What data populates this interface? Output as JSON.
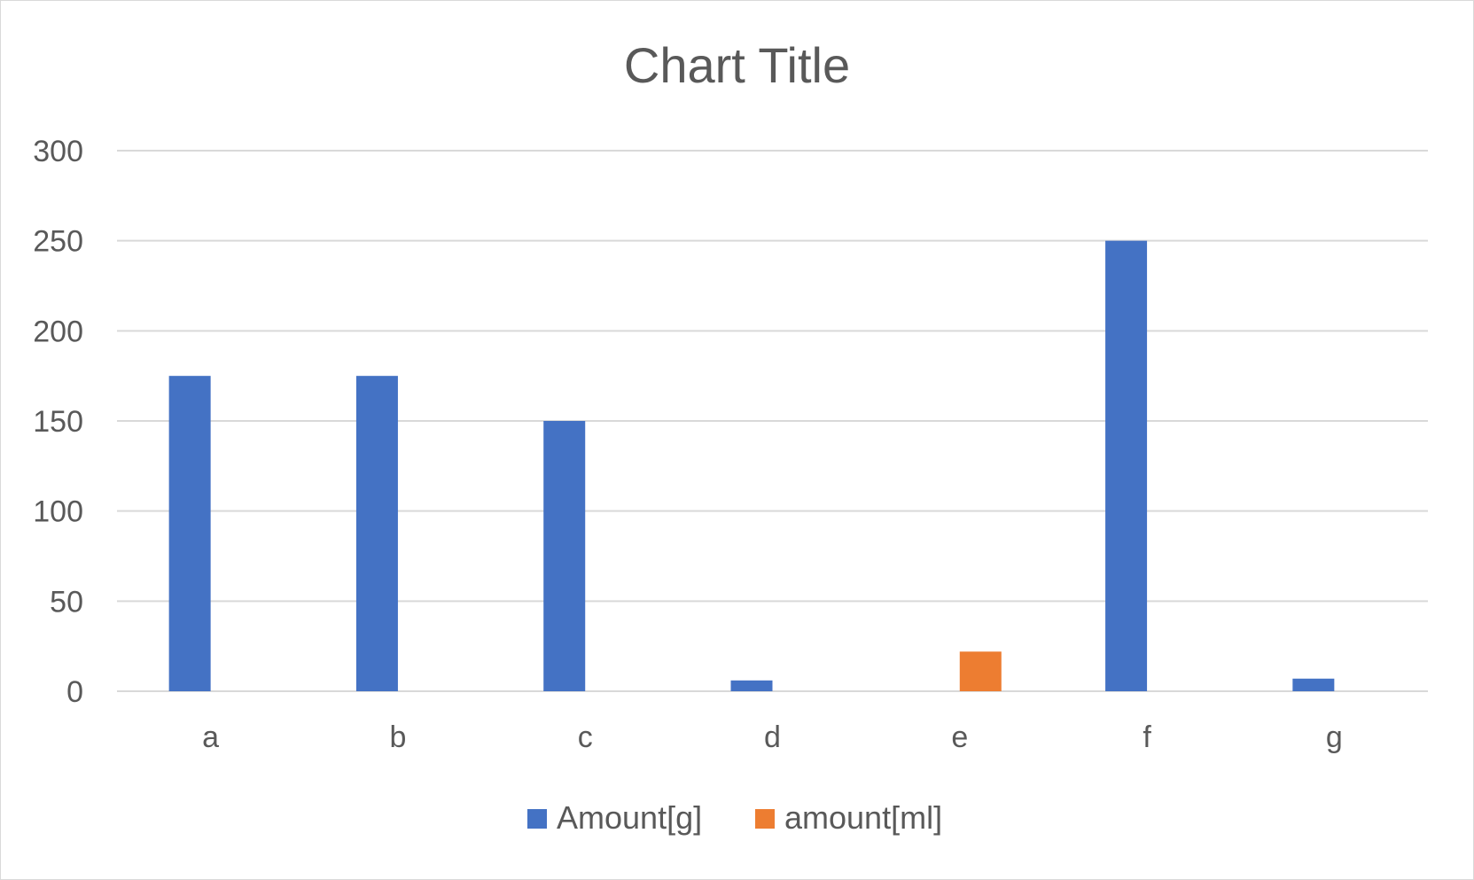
{
  "chart_data": {
    "type": "bar",
    "title": "Chart Title",
    "xlabel": "",
    "ylabel": "",
    "categories": [
      "a",
      "b",
      "c",
      "d",
      "e",
      "f",
      "g"
    ],
    "series": [
      {
        "name": "Amount[g]",
        "color": "#4472c4",
        "values": [
          175,
          175,
          150,
          6,
          0,
          250,
          7
        ]
      },
      {
        "name": "amount[ml]",
        "color": "#ed7d31",
        "values": [
          0,
          0,
          0,
          0,
          22,
          0,
          0
        ]
      }
    ],
    "ylim": [
      0,
      300
    ],
    "yticks": [
      0,
      50,
      100,
      150,
      200,
      250,
      300
    ],
    "grid": true,
    "legend": "bottom-center"
  }
}
